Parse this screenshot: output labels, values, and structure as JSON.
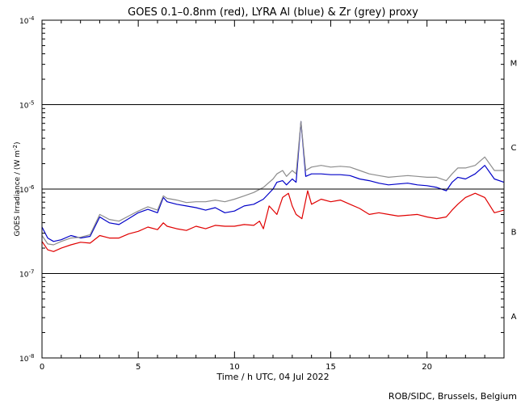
{
  "chart_data": {
    "type": "line",
    "title": "GOES 0.1–0.8nm (red), LYRA Al (blue) & Zr (grey) proxy",
    "xlabel": "Time / h UTC, 04 Jul 2022",
    "ylabel_prefix": "GOES Irradiance / (W m",
    "ylabel_exp": "-2",
    "ylabel_suffix": ")",
    "credit": "ROB/SIDC, Brussels, Belgium",
    "xlim": [
      0,
      24
    ],
    "ylim_log10": [
      -8,
      -4
    ],
    "y_scale": "log",
    "x_ticks": [
      {
        "value": 0,
        "label": "0"
      },
      {
        "value": 5,
        "label": "5"
      },
      {
        "value": 10,
        "label": "10"
      },
      {
        "value": 15,
        "label": "15"
      },
      {
        "value": 20,
        "label": "20"
      }
    ],
    "y_ticks": [
      {
        "exp": -8,
        "base": "10",
        "sup": "-8"
      },
      {
        "exp": -7,
        "base": "10",
        "sup": "-7"
      },
      {
        "exp": -6,
        "base": "10",
        "sup": "-6"
      },
      {
        "exp": -5,
        "base": "10",
        "sup": "-5"
      },
      {
        "exp": -4,
        "base": "10",
        "sup": "-4"
      }
    ],
    "flare_class_lines": [
      -7,
      -6,
      -5
    ],
    "flare_classes": [
      {
        "label": "A",
        "log_mid": -7.5
      },
      {
        "label": "B",
        "log_mid": -6.5
      },
      {
        "label": "C",
        "log_mid": -5.5
      },
      {
        "label": "M",
        "log_mid": -4.5
      }
    ],
    "series": [
      {
        "name": "GOES 0.1-0.8nm",
        "color": "#e00000",
        "points": [
          [
            0,
            -6.62
          ],
          [
            0.3,
            -6.72
          ],
          [
            0.6,
            -6.74
          ],
          [
            1,
            -6.7
          ],
          [
            1.5,
            -6.66
          ],
          [
            2,
            -6.63
          ],
          [
            2.5,
            -6.64
          ],
          [
            3,
            -6.55
          ],
          [
            3.5,
            -6.58
          ],
          [
            4,
            -6.58
          ],
          [
            4.5,
            -6.53
          ],
          [
            5,
            -6.5
          ],
          [
            5.5,
            -6.45
          ],
          [
            6,
            -6.48
          ],
          [
            6.3,
            -6.4
          ],
          [
            6.5,
            -6.44
          ],
          [
            7,
            -6.47
          ],
          [
            7.5,
            -6.49
          ],
          [
            8,
            -6.44
          ],
          [
            8.5,
            -6.47
          ],
          [
            9,
            -6.43
          ],
          [
            9.5,
            -6.44
          ],
          [
            10,
            -6.44
          ],
          [
            10.5,
            -6.42
          ],
          [
            11,
            -6.43
          ],
          [
            11.3,
            -6.38
          ],
          [
            11.5,
            -6.47
          ],
          [
            11.8,
            -6.2
          ],
          [
            12.2,
            -6.3
          ],
          [
            12.5,
            -6.1
          ],
          [
            12.8,
            -6.05
          ],
          [
            13,
            -6.2
          ],
          [
            13.2,
            -6.3
          ],
          [
            13.5,
            -6.35
          ],
          [
            13.8,
            -6.02
          ],
          [
            14,
            -6.18
          ],
          [
            14.5,
            -6.12
          ],
          [
            15,
            -6.15
          ],
          [
            15.5,
            -6.13
          ],
          [
            16,
            -6.18
          ],
          [
            16.5,
            -6.23
          ],
          [
            17,
            -6.3
          ],
          [
            17.5,
            -6.28
          ],
          [
            18,
            -6.3
          ],
          [
            18.5,
            -6.32
          ],
          [
            19,
            -6.31
          ],
          [
            19.5,
            -6.3
          ],
          [
            20,
            -6.33
          ],
          [
            20.5,
            -6.35
          ],
          [
            21,
            -6.33
          ],
          [
            21.3,
            -6.25
          ],
          [
            21.6,
            -6.18
          ],
          [
            22,
            -6.1
          ],
          [
            22.5,
            -6.05
          ],
          [
            23,
            -6.1
          ],
          [
            23.5,
            -6.28
          ],
          [
            24,
            -6.25
          ]
        ]
      },
      {
        "name": "LYRA Al proxy",
        "color": "#0000c8",
        "points": [
          [
            0,
            -6.45
          ],
          [
            0.3,
            -6.58
          ],
          [
            0.6,
            -6.62
          ],
          [
            1,
            -6.6
          ],
          [
            1.5,
            -6.55
          ],
          [
            2,
            -6.58
          ],
          [
            2.5,
            -6.56
          ],
          [
            3,
            -6.33
          ],
          [
            3.5,
            -6.4
          ],
          [
            4,
            -6.42
          ],
          [
            4.5,
            -6.35
          ],
          [
            5,
            -6.28
          ],
          [
            5.5,
            -6.24
          ],
          [
            6,
            -6.28
          ],
          [
            6.3,
            -6.1
          ],
          [
            6.5,
            -6.15
          ],
          [
            7,
            -6.18
          ],
          [
            7.5,
            -6.2
          ],
          [
            8,
            -6.22
          ],
          [
            8.5,
            -6.25
          ],
          [
            9,
            -6.22
          ],
          [
            9.5,
            -6.28
          ],
          [
            10,
            -6.26
          ],
          [
            10.5,
            -6.2
          ],
          [
            11,
            -6.18
          ],
          [
            11.5,
            -6.12
          ],
          [
            12,
            -6.0
          ],
          [
            12.2,
            -5.92
          ],
          [
            12.5,
            -5.9
          ],
          [
            12.7,
            -5.95
          ],
          [
            13,
            -5.88
          ],
          [
            13.2,
            -5.92
          ],
          [
            13.45,
            -5.2
          ],
          [
            13.7,
            -5.85
          ],
          [
            14,
            -5.82
          ],
          [
            14.5,
            -5.82
          ],
          [
            15,
            -5.83
          ],
          [
            15.5,
            -5.83
          ],
          [
            16,
            -5.84
          ],
          [
            16.5,
            -5.88
          ],
          [
            17,
            -5.9
          ],
          [
            17.5,
            -5.93
          ],
          [
            18,
            -5.95
          ],
          [
            18.5,
            -5.94
          ],
          [
            19,
            -5.93
          ],
          [
            19.5,
            -5.95
          ],
          [
            20,
            -5.96
          ],
          [
            20.5,
            -5.98
          ],
          [
            21,
            -6.02
          ],
          [
            21.3,
            -5.92
          ],
          [
            21.6,
            -5.86
          ],
          [
            22,
            -5.88
          ],
          [
            22.5,
            -5.82
          ],
          [
            23,
            -5.72
          ],
          [
            23.5,
            -5.88
          ],
          [
            24,
            -5.92
          ]
        ]
      },
      {
        "name": "LYRA Zr proxy",
        "color": "#8c8c8c",
        "points": [
          [
            0,
            -6.55
          ],
          [
            0.3,
            -6.65
          ],
          [
            0.6,
            -6.66
          ],
          [
            1,
            -6.62
          ],
          [
            1.5,
            -6.58
          ],
          [
            2,
            -6.57
          ],
          [
            2.5,
            -6.54
          ],
          [
            3,
            -6.3
          ],
          [
            3.5,
            -6.36
          ],
          [
            4,
            -6.38
          ],
          [
            4.5,
            -6.32
          ],
          [
            5,
            -6.26
          ],
          [
            5.5,
            -6.21
          ],
          [
            6,
            -6.25
          ],
          [
            6.3,
            -6.08
          ],
          [
            6.5,
            -6.11
          ],
          [
            7,
            -6.13
          ],
          [
            7.5,
            -6.16
          ],
          [
            8,
            -6.15
          ],
          [
            8.5,
            -6.15
          ],
          [
            9,
            -6.13
          ],
          [
            9.5,
            -6.15
          ],
          [
            10,
            -6.12
          ],
          [
            10.5,
            -6.08
          ],
          [
            11,
            -6.04
          ],
          [
            11.5,
            -5.98
          ],
          [
            12,
            -5.88
          ],
          [
            12.2,
            -5.82
          ],
          [
            12.5,
            -5.78
          ],
          [
            12.7,
            -5.85
          ],
          [
            13,
            -5.78
          ],
          [
            13.2,
            -5.82
          ],
          [
            13.45,
            -5.2
          ],
          [
            13.7,
            -5.78
          ],
          [
            14,
            -5.74
          ],
          [
            14.5,
            -5.72
          ],
          [
            15,
            -5.74
          ],
          [
            15.5,
            -5.73
          ],
          [
            16,
            -5.74
          ],
          [
            16.5,
            -5.78
          ],
          [
            17,
            -5.82
          ],
          [
            17.5,
            -5.84
          ],
          [
            18,
            -5.86
          ],
          [
            18.5,
            -5.85
          ],
          [
            19,
            -5.84
          ],
          [
            19.5,
            -5.85
          ],
          [
            20,
            -5.86
          ],
          [
            20.5,
            -5.86
          ],
          [
            21,
            -5.9
          ],
          [
            21.3,
            -5.82
          ],
          [
            21.6,
            -5.75
          ],
          [
            22,
            -5.75
          ],
          [
            22.5,
            -5.72
          ],
          [
            23,
            -5.62
          ],
          [
            23.5,
            -5.78
          ],
          [
            24,
            -5.78
          ]
        ]
      }
    ]
  }
}
